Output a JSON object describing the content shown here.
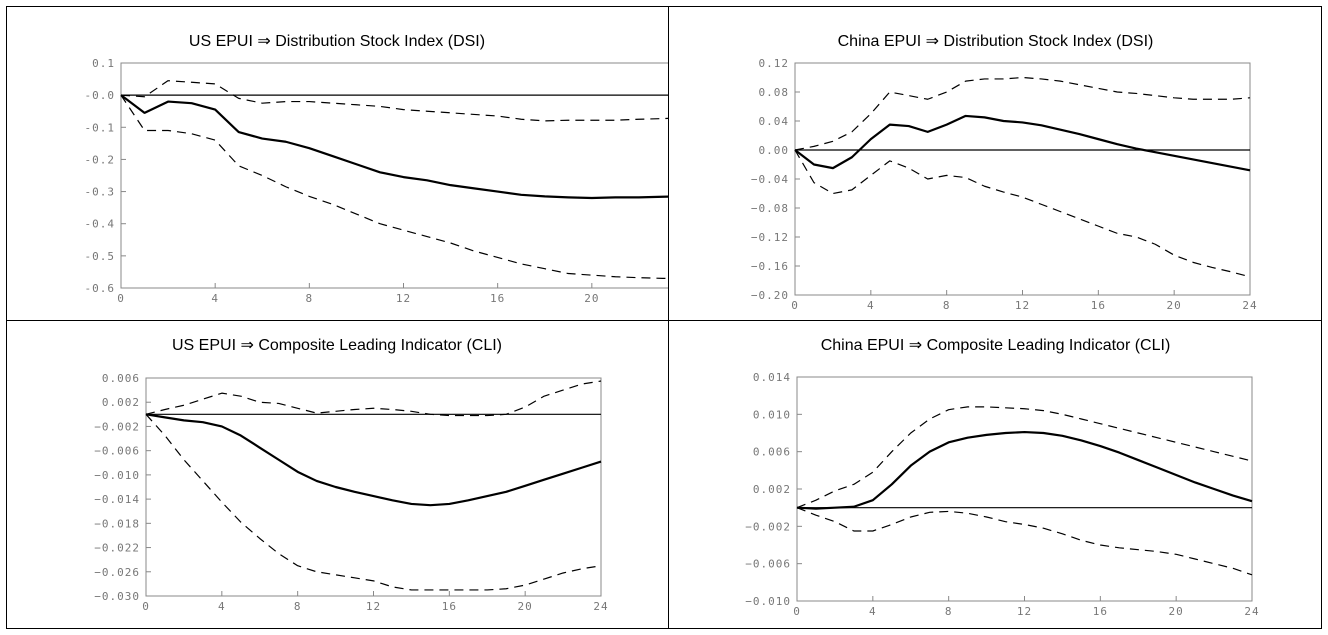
{
  "chart_data": [
    {
      "type": "line",
      "title": "US EPUI ⇒ Distribution Stock Index (DSI)",
      "x_ticks": [
        "0",
        "4",
        "8",
        "12",
        "16",
        "20",
        "24"
      ],
      "y_ticks": [
        "0.1",
        "-0.0",
        "-0.1",
        "-0.2",
        "-0.3",
        "-0.4",
        "-0.5",
        "-0.6"
      ],
      "xlim": [
        0,
        24
      ],
      "ylim": [
        -0.6,
        0.1
      ],
      "zero_line": 0,
      "series": [
        {
          "style": "solid",
          "values": [
            0,
            -0.055,
            -0.02,
            -0.025,
            -0.045,
            -0.115,
            -0.135,
            -0.145,
            -0.165,
            -0.19,
            -0.215,
            -0.24,
            -0.255,
            -0.265,
            -0.28,
            -0.29,
            -0.3,
            -0.31,
            -0.315,
            -0.318,
            -0.32,
            -0.318,
            -0.318,
            -0.316,
            -0.315
          ]
        },
        {
          "style": "dashed",
          "values": [
            0,
            -0.005,
            0.045,
            0.04,
            0.035,
            -0.01,
            -0.025,
            -0.02,
            -0.02,
            -0.025,
            -0.03,
            -0.035,
            -0.045,
            -0.05,
            -0.055,
            -0.06,
            -0.065,
            -0.075,
            -0.08,
            -0.078,
            -0.078,
            -0.078,
            -0.075,
            -0.073,
            -0.07
          ]
        },
        {
          "style": "dashed",
          "values": [
            0,
            -0.11,
            -0.11,
            -0.12,
            -0.14,
            -0.22,
            -0.25,
            -0.285,
            -0.315,
            -0.34,
            -0.37,
            -0.4,
            -0.42,
            -0.44,
            -0.46,
            -0.485,
            -0.505,
            -0.525,
            -0.54,
            -0.555,
            -0.56,
            -0.565,
            -0.568,
            -0.57,
            -0.57
          ]
        }
      ]
    },
    {
      "type": "line",
      "title": "China EPUI ⇒ Distribution Stock Index (DSI)",
      "x_ticks": [
        "0",
        "4",
        "8",
        "12",
        "16",
        "20",
        "24"
      ],
      "y_ticks": [
        "0.12",
        "0.08",
        "0.04",
        "0.00",
        "−0.04",
        "−0.08",
        "−0.12",
        "−0.16",
        "−0.20"
      ],
      "xlim": [
        0,
        24
      ],
      "ylim": [
        -0.2,
        0.12
      ],
      "zero_line": 0,
      "series": [
        {
          "style": "solid",
          "values": [
            0,
            -0.02,
            -0.025,
            -0.01,
            0.015,
            0.035,
            0.033,
            0.025,
            0.035,
            0.047,
            0.045,
            0.04,
            0.038,
            0.034,
            0.028,
            0.022,
            0.015,
            0.008,
            0.002,
            -0.003,
            -0.008,
            -0.013,
            -0.018,
            -0.023,
            -0.028
          ]
        },
        {
          "style": "dashed",
          "values": [
            0,
            0.005,
            0.012,
            0.025,
            0.05,
            0.08,
            0.075,
            0.07,
            0.08,
            0.095,
            0.098,
            0.098,
            0.1,
            0.098,
            0.095,
            0.09,
            0.085,
            0.08,
            0.078,
            0.075,
            0.072,
            0.07,
            0.07,
            0.07,
            0.072
          ]
        },
        {
          "style": "dashed",
          "values": [
            0,
            -0.045,
            -0.06,
            -0.055,
            -0.035,
            -0.015,
            -0.025,
            -0.04,
            -0.035,
            -0.038,
            -0.05,
            -0.058,
            -0.065,
            -0.075,
            -0.085,
            -0.095,
            -0.105,
            -0.115,
            -0.12,
            -0.13,
            -0.145,
            -0.155,
            -0.162,
            -0.168,
            -0.175
          ]
        }
      ]
    },
    {
      "type": "line",
      "title": "US EPUI ⇒ Composite Leading Indicator (CLI)",
      "x_ticks": [
        "0",
        "4",
        "8",
        "12",
        "16",
        "20",
        "24"
      ],
      "y_ticks": [
        "0.006",
        "0.002",
        "−0.002",
        "−0.006",
        "−0.010",
        "−0.014",
        "−0.018",
        "−0.022",
        "−0.026",
        "−0.030"
      ],
      "xlim": [
        0,
        24
      ],
      "ylim": [
        -0.03,
        0.006
      ],
      "zero_line": 0,
      "series": [
        {
          "style": "solid",
          "values": [
            0,
            -0.0005,
            -0.001,
            -0.0013,
            -0.002,
            -0.0035,
            -0.0055,
            -0.0075,
            -0.0095,
            -0.011,
            -0.012,
            -0.0128,
            -0.0135,
            -0.0142,
            -0.0148,
            -0.015,
            -0.0148,
            -0.0142,
            -0.0135,
            -0.0128,
            -0.0118,
            -0.0108,
            -0.0098,
            -0.0088,
            -0.0078
          ]
        },
        {
          "style": "dashed",
          "values": [
            0,
            0.0008,
            0.0015,
            0.0025,
            0.0035,
            0.003,
            0.002,
            0.0018,
            0.001,
            0.0002,
            0.0005,
            0.0008,
            0.001,
            0.0008,
            0.0005,
            0.0,
            -0.0002,
            -0.0002,
            -0.0002,
            0.0,
            0.0012,
            0.003,
            0.004,
            0.005,
            0.0055
          ]
        },
        {
          "style": "dashed",
          "values": [
            0,
            -0.0035,
            -0.0075,
            -0.011,
            -0.0145,
            -0.0178,
            -0.0205,
            -0.023,
            -0.025,
            -0.026,
            -0.0265,
            -0.027,
            -0.0275,
            -0.0285,
            -0.029,
            -0.029,
            -0.029,
            -0.029,
            -0.029,
            -0.0288,
            -0.0282,
            -0.0272,
            -0.0262,
            -0.0255,
            -0.025
          ]
        }
      ]
    },
    {
      "type": "line",
      "title": "China EPUI ⇒ Composite Leading Indicator (CLI)",
      "x_ticks": [
        "0",
        "4",
        "8",
        "12",
        "16",
        "20",
        "24"
      ],
      "y_ticks": [
        "0.014",
        "0.010",
        "0.006",
        "0.002",
        "−0.002",
        "−0.006",
        "−0.010"
      ],
      "xlim": [
        0,
        24
      ],
      "ylim": [
        -0.01,
        0.014
      ],
      "zero_line": 0,
      "series": [
        {
          "style": "solid",
          "values": [
            0,
            -0.0001,
            0.0,
            0.0001,
            0.0008,
            0.0025,
            0.0045,
            0.006,
            0.007,
            0.0075,
            0.0078,
            0.008,
            0.0081,
            0.008,
            0.0077,
            0.0072,
            0.0066,
            0.0059,
            0.0051,
            0.0043,
            0.0035,
            0.0027,
            0.002,
            0.0013,
            0.0007
          ]
        },
        {
          "style": "dashed",
          "values": [
            0,
            0.0008,
            0.0018,
            0.0025,
            0.0038,
            0.006,
            0.008,
            0.0095,
            0.0105,
            0.0108,
            0.0108,
            0.0107,
            0.0106,
            0.0104,
            0.01,
            0.0095,
            0.009,
            0.0085,
            0.008,
            0.0075,
            0.007,
            0.0065,
            0.006,
            0.0055,
            0.005
          ]
        },
        {
          "style": "dashed",
          "values": [
            0,
            -0.0008,
            -0.0015,
            -0.0025,
            -0.0025,
            -0.0018,
            -0.001,
            -0.0005,
            -0.0004,
            -0.0006,
            -0.001,
            -0.0015,
            -0.0018,
            -0.0022,
            -0.0028,
            -0.0035,
            -0.004,
            -0.0043,
            -0.0045,
            -0.0047,
            -0.005,
            -0.0055,
            -0.006,
            -0.0065,
            -0.0072
          ]
        }
      ]
    }
  ]
}
